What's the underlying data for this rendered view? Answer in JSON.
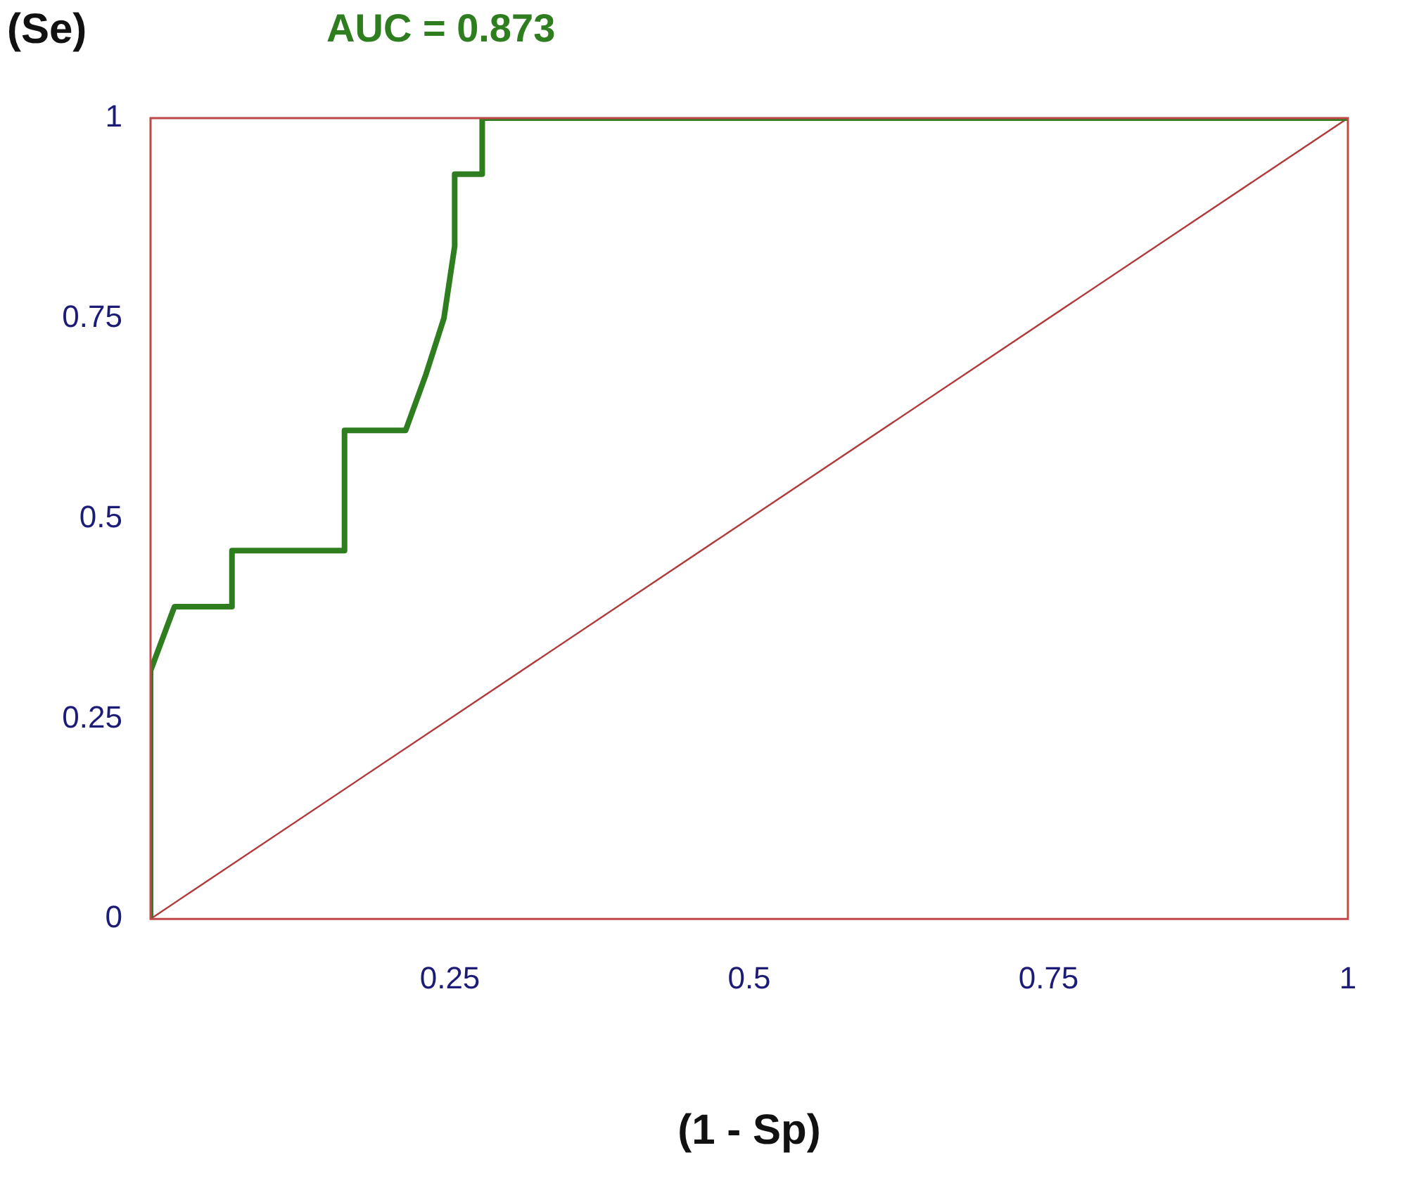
{
  "chart_data": {
    "type": "line",
    "title": "AUC = 0.873",
    "xlabel": "(1 - Sp)",
    "ylabel": "(Se)",
    "xlim": [
      0,
      1
    ],
    "ylim": [
      0,
      1
    ],
    "xticks": [
      0.25,
      0.5,
      0.75,
      1
    ],
    "yticks": [
      0,
      0.25,
      0.5,
      0.75,
      1
    ],
    "grid": false,
    "legend": false,
    "marker": "none",
    "line_style": "solid",
    "series": [
      {
        "color": "#2e7d1e",
        "x": [
          0,
          0,
          0.02,
          0.068,
          0.068,
          0.162,
          0.162,
          0.213,
          0.23,
          0.245,
          0.254,
          0.254,
          0.277,
          0.277,
          1
        ],
        "values": [
          0,
          0.31,
          0.39,
          0.39,
          0.46,
          0.46,
          0.61,
          0.61,
          0.68,
          0.75,
          0.84,
          0.93,
          0.93,
          1,
          1
        ]
      },
      {
        "color": "#b03a3a",
        "x": [
          0,
          1
        ],
        "values": [
          0,
          1
        ]
      }
    ]
  }
}
